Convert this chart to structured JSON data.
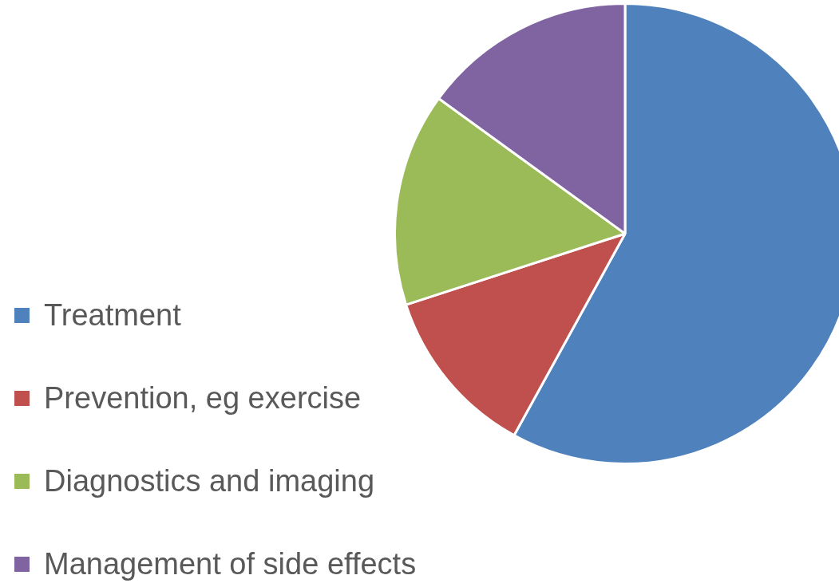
{
  "chart_data": {
    "type": "pie",
    "categories": [
      "Treatment",
      "Prevention, eg exercise",
      "Diagnostics and imaging",
      "Management of side effects"
    ],
    "values": [
      58,
      12,
      15,
      15
    ],
    "colors": [
      "#4f81bd",
      "#c0504d",
      "#9bbb59",
      "#8064a2"
    ],
    "legend": "bottom left"
  }
}
